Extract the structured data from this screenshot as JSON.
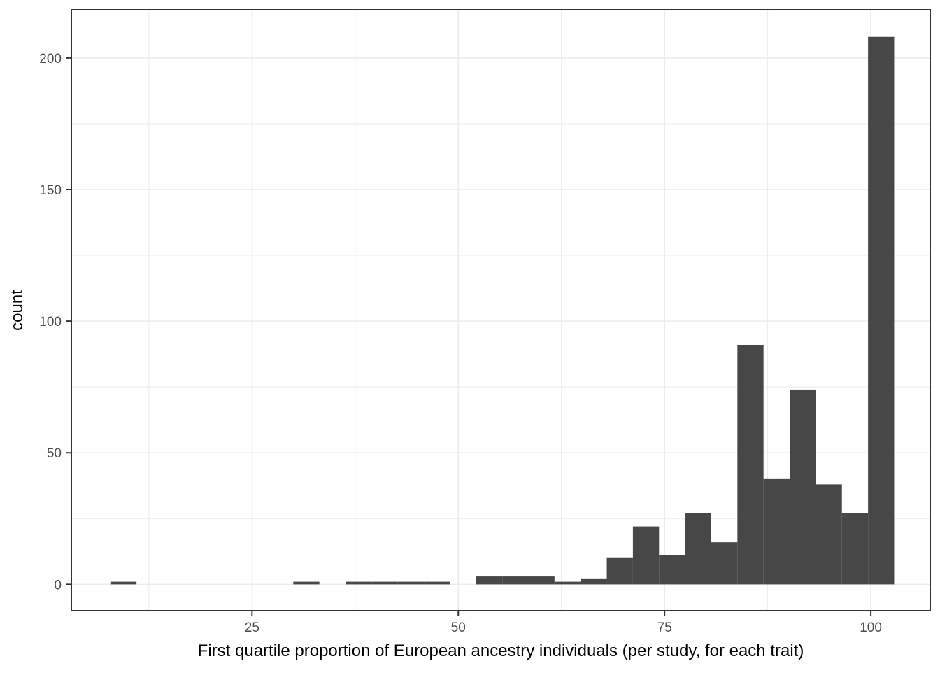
{
  "chart_data": {
    "type": "bar",
    "subtype": "histogram",
    "title": "",
    "xlabel": "First quartile proportion of European ancestry individuals (per study, for each trait)",
    "ylabel": "count",
    "x_ticks": [
      25,
      50,
      75,
      100
    ],
    "x_minor_gridlines": [
      12.5,
      37.5,
      62.5,
      87.5
    ],
    "y_ticks": [
      0,
      50,
      100,
      150,
      200
    ],
    "y_minor_gridlines": [
      25,
      75,
      125,
      175
    ],
    "xlim": [
      3.1,
      107.2
    ],
    "ylim": [
      -10,
      218.3
    ],
    "bin_start": 7.83,
    "bin_width": 3.1667,
    "counts": [
      1,
      0,
      0,
      0,
      0,
      0,
      0,
      1,
      0,
      1,
      1,
      1,
      1,
      0,
      3,
      3,
      3,
      1,
      2,
      10,
      22,
      11,
      27,
      16,
      91,
      40,
      74,
      38,
      27,
      208
    ],
    "legend": "none",
    "grid": "on",
    "colors": {
      "bar_fill": "#474747",
      "gridline": "#EBEBEB",
      "panel_border": "#333333",
      "tick_mark": "#333333",
      "tick_label": "#4D4D4D",
      "axis_title": "#000000",
      "background": "#FFFFFF"
    }
  }
}
